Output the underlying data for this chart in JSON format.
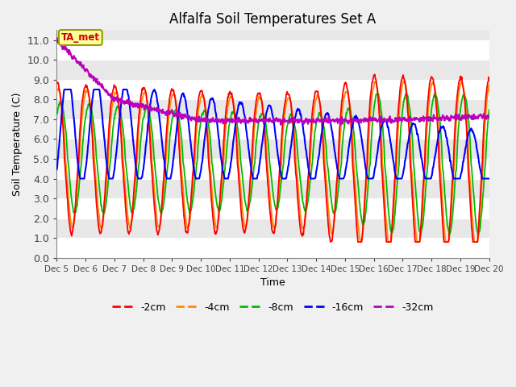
{
  "title": "Alfalfa Soil Temperatures Set A",
  "xlabel": "Time",
  "ylabel": "Soil Temperature (C)",
  "ylim": [
    0.0,
    11.5
  ],
  "yticks": [
    0.0,
    1.0,
    2.0,
    3.0,
    4.0,
    5.0,
    6.0,
    7.0,
    8.0,
    9.0,
    10.0,
    11.0
  ],
  "xtick_labels": [
    "Dec 5",
    "Dec 6",
    "Dec 7",
    "Dec 8",
    "Dec 9",
    "Dec 10",
    "Dec 11",
    "Dec 12",
    "Dec 13",
    "Dec 14",
    "Dec 15",
    "Dec 16",
    "Dec 17",
    "Dec 18",
    "Dec 19",
    "Dec 20"
  ],
  "n_points": 960,
  "n_days": 15,
  "colors": {
    "neg2cm": "#ff0000",
    "neg4cm": "#ff8800",
    "neg8cm": "#00bb00",
    "neg16cm": "#0000ff",
    "neg32cm": "#bb00bb"
  },
  "legend_labels": [
    "-2cm",
    "-4cm",
    "-8cm",
    "-16cm",
    "-32cm"
  ],
  "bg_light": "#e8e8e8",
  "bg_dark": "#d0d0d0",
  "grid_color": "#ffffff",
  "annotation_text": "TA_met",
  "annotation_color": "#cc0000",
  "annotation_bg": "#ffff99",
  "annotation_border": "#999900"
}
